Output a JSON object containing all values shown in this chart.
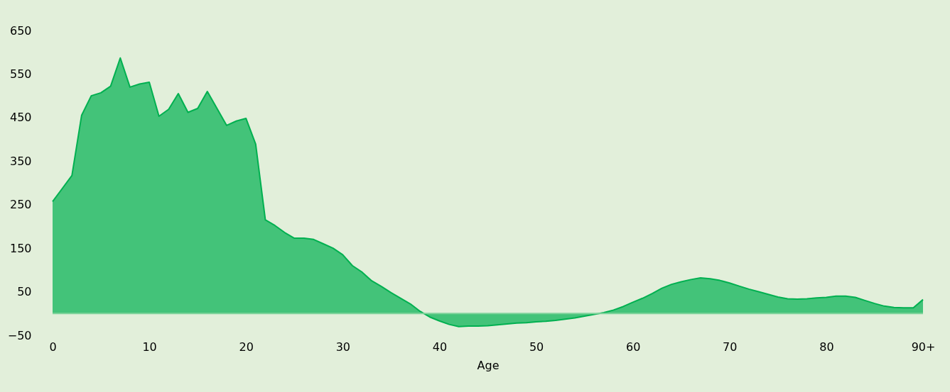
{
  "chart_data": {
    "type": "area",
    "xlabel": "Age",
    "categories": [
      "0",
      null,
      null,
      null,
      null,
      null,
      null,
      null,
      null,
      null,
      "10",
      null,
      null,
      null,
      null,
      null,
      null,
      null,
      null,
      null,
      "20",
      null,
      null,
      null,
      null,
      null,
      null,
      null,
      null,
      null,
      "30",
      null,
      null,
      null,
      null,
      null,
      null,
      null,
      null,
      null,
      "40",
      null,
      null,
      null,
      null,
      null,
      null,
      null,
      null,
      null,
      "50",
      null,
      null,
      null,
      null,
      null,
      null,
      null,
      null,
      null,
      "60",
      null,
      null,
      null,
      null,
      null,
      null,
      null,
      null,
      null,
      "70",
      null,
      null,
      null,
      null,
      null,
      null,
      null,
      null,
      null,
      "80",
      null,
      null,
      null,
      null,
      null,
      null,
      null,
      null,
      null,
      "90+"
    ],
    "series": [
      {
        "color": "#00b050",
        "values": [
          257,
          287,
          317,
          455,
          500,
          507,
          522,
          587,
          520,
          527,
          531,
          453,
          469,
          505,
          462,
          471,
          510,
          471,
          432,
          442,
          448,
          389,
          215,
          202,
          186,
          173,
          173,
          170,
          160,
          150,
          135,
          110,
          95,
          75,
          62,
          48,
          35,
          22,
          5,
          -8,
          -17,
          -25,
          -30,
          -29,
          -29,
          -28,
          -26,
          -24,
          -22,
          -21,
          -19,
          -18,
          -16,
          -13,
          -10,
          -6,
          -2,
          2,
          8,
          16,
          26,
          35,
          46,
          58,
          67,
          73,
          78,
          82,
          80,
          76,
          70,
          63,
          56,
          50,
          44,
          38,
          34,
          33,
          34,
          36,
          37,
          40,
          40,
          37,
          30,
          23,
          17,
          14,
          13,
          13,
          32
        ]
      }
    ],
    "ylim": [
      -50,
      650
    ],
    "yticks": [
      -50,
      50,
      150,
      250,
      350,
      450,
      550,
      650
    ],
    "grid": false
  }
}
